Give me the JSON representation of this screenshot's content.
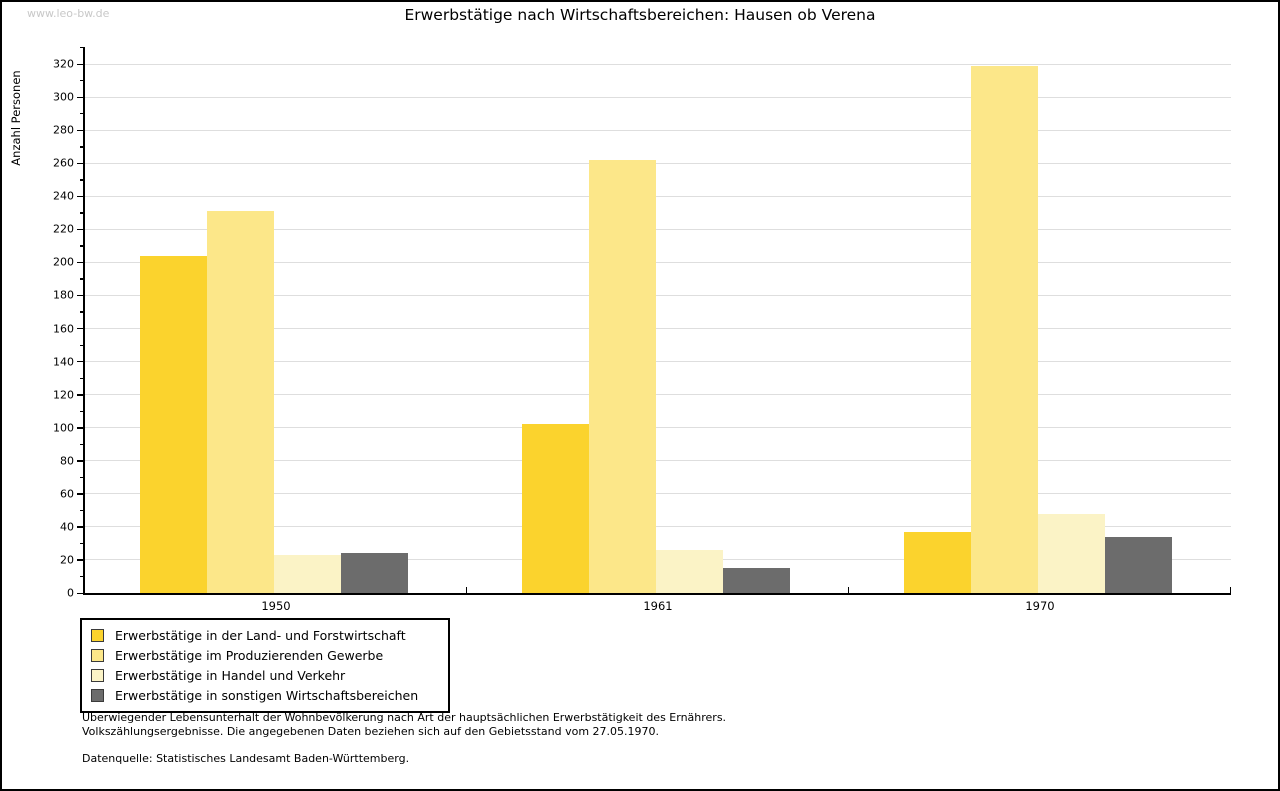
{
  "page": {
    "watermark": "www.leo-bw.de",
    "footnotes": [
      "Überwiegender Lebensunterhalt der Wohnbevölkerung nach Art der hauptsächlichen Erwerbstätigkeit des Ernährers.",
      "Volkszählungsergebnisse. Die angegebenen Daten beziehen sich auf den Gebietsstand vom 27.05.1970."
    ],
    "datasource": "Datenquelle: Statistisches Landesamt Baden-Württemberg."
  },
  "chart_data": {
    "type": "bar",
    "title": "Erwerbstätige nach Wirtschaftsbereichen: Hausen ob Verena",
    "ylabel": "Anzahl Personen",
    "xlabel": "",
    "categories": [
      "1950",
      "1961",
      "1970"
    ],
    "series": [
      {
        "name": "Erwerbstätige in der Land- und Forstwirtschaft",
        "color": "#FBD32D",
        "values": [
          204,
          102,
          37
        ]
      },
      {
        "name": "Erwerbstätige im Produzierenden Gewerbe",
        "color": "#FCE789",
        "values": [
          231,
          262,
          319
        ]
      },
      {
        "name": "Erwerbstätige in Handel und Verkehr",
        "color": "#FBF3C6",
        "values": [
          23,
          26,
          48
        ]
      },
      {
        "name": "Erwerbstätige in sonstigen Wirtschaftsbereichen",
        "color": "#6C6C6C",
        "values": [
          24,
          15,
          34
        ]
      }
    ],
    "ylim": [
      0,
      320
    ],
    "ytick_step": 20,
    "yminor_step": 10,
    "grid": true,
    "legend_position": "bottom-left",
    "gridline_color": "#dedede"
  }
}
